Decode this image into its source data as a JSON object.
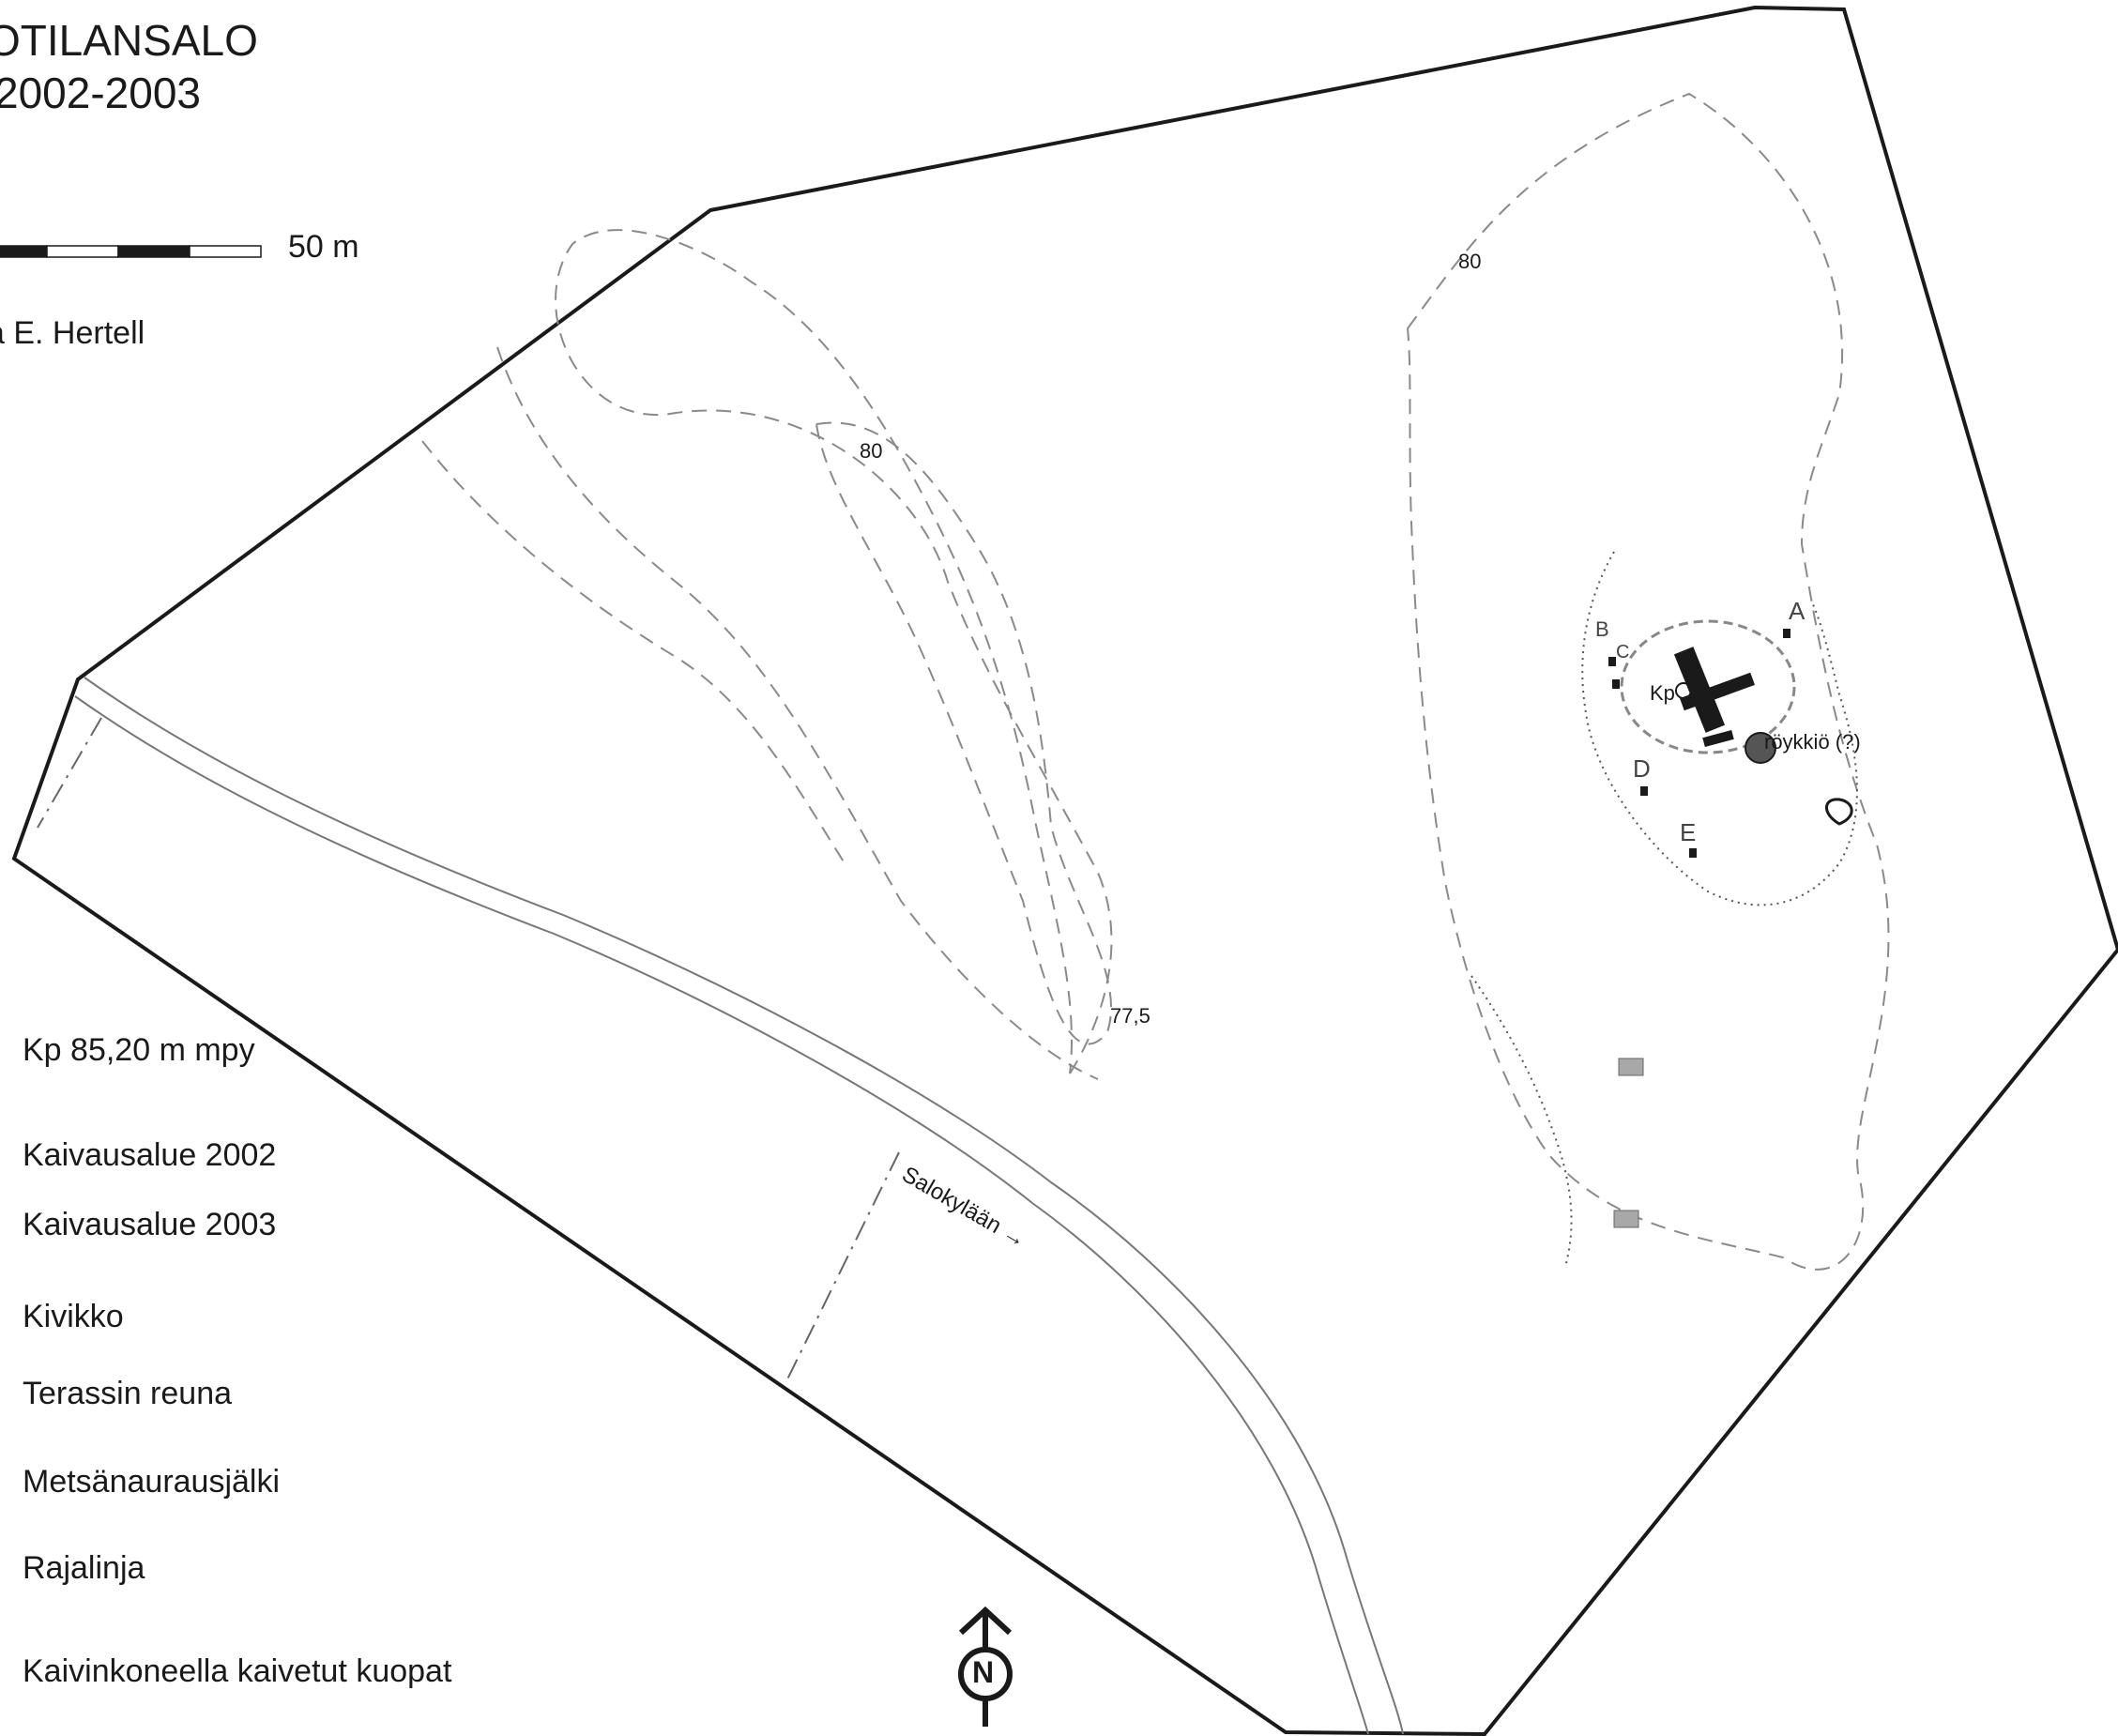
{
  "map": {
    "title": "OTILANSALO",
    "years": "2002-2003",
    "scale_label": "50 m",
    "author": "a E. Hertell",
    "labels": {
      "contour_80_left": "80",
      "contour_80_right": "80",
      "contour_77_5": "77,5",
      "road": "Salokylään →",
      "kp": "Kp",
      "roykkio": "röykkiö (?)",
      "trench_a": "A",
      "trench_b": "B",
      "trench_c": "C",
      "trench_d": "D",
      "trench_e": "E"
    },
    "north_label": "N"
  },
  "legend": [
    {
      "label": "Kp 85,20 m mpy"
    },
    {
      "label": "Kaivausalue 2002"
    },
    {
      "label": "Kaivausalue 2003"
    },
    {
      "label": "Kivikko"
    },
    {
      "label": "Terassin reuna"
    },
    {
      "label": "Metsänaurausjälki"
    },
    {
      "label": "Rajalinja"
    },
    {
      "label": "Kaivinkoneella kaivetut kuopat"
    }
  ],
  "colors": {
    "ink": "#1a1a1a",
    "contour": "#8a8a8a",
    "pit_fill": "#a8a8a8"
  }
}
